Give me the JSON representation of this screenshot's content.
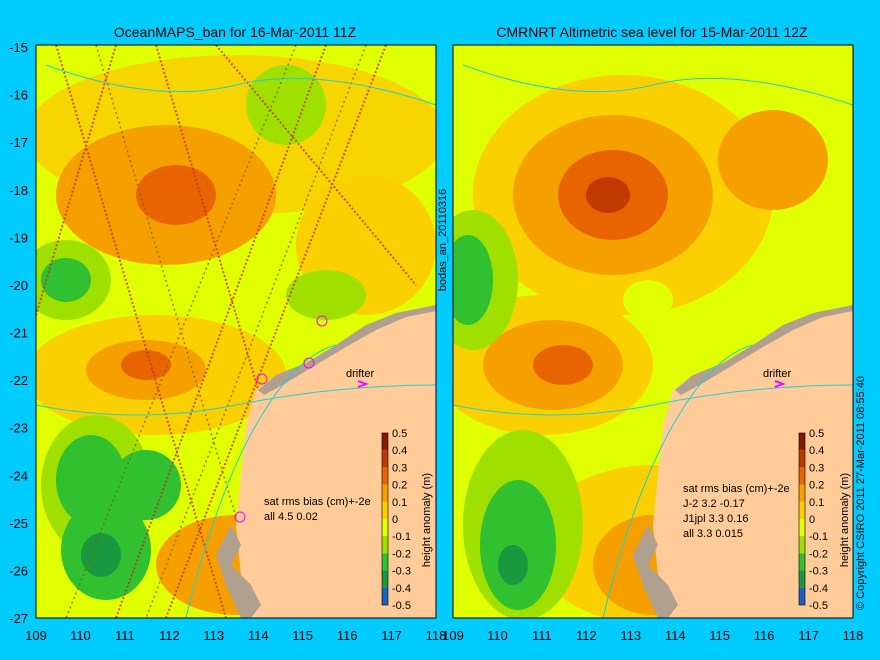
{
  "panels": [
    {
      "title": "OceanMAPS_ban for 16-Mar-2011 11Z",
      "stats_header": "sat rms bias (cm)+-2e",
      "stats": [
        "all 4.5 0.02"
      ],
      "drifter_label": "drifter"
    },
    {
      "title": "CMRNRT Altimetric sea level  for 15-Mar-2011 12Z",
      "stats_header": "sat rms bias (cm)+-2e",
      "stats": [
        "J-2   3.2 -0.17",
        "J1jpl 3.3 0.16",
        "all 3.3 0.015"
      ],
      "drifter_label": "drifter"
    }
  ],
  "axes": {
    "lat_ticks": [
      "-15",
      "-16",
      "-17",
      "-18",
      "-19",
      "-20",
      "-21",
      "-22",
      "-23",
      "-24",
      "-25",
      "-26",
      "-27"
    ],
    "lon_ticks": [
      "109",
      "110",
      "111",
      "112",
      "113",
      "114",
      "115",
      "116",
      "117",
      "118"
    ]
  },
  "side_label": "bodas_an_20110316",
  "colorbar": {
    "title": "height anomaly (m)",
    "labels": [
      "0.5",
      "0.4",
      "0.3",
      "0.2",
      "0.1",
      "0",
      "-0.1",
      "-0.2",
      "-0.3",
      "-0.4",
      "-0.5"
    ],
    "colors": [
      "#8a1800",
      "#c03a00",
      "#e86400",
      "#f6a000",
      "#fad000",
      "#e0ff00",
      "#a0e000",
      "#30c030",
      "#1a9840",
      "#1a60c0",
      "#0a1a80"
    ]
  },
  "copyright": "© Copyright CSIRO 2011   27-Mar-2011 08:55:40",
  "colors": {
    "background": "#00ccff",
    "land": "#ffcc99",
    "shelf": "#b0a090",
    "drifter": "#ff00ff"
  }
}
